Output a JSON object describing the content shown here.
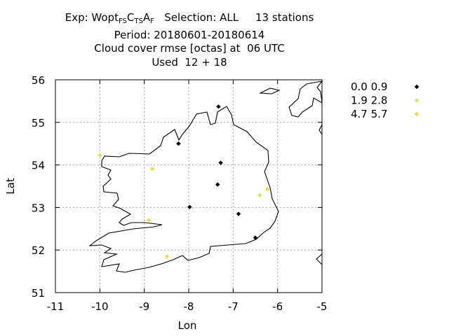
{
  "chart_data": {
    "type": "scatter",
    "title": {
      "exp_prefix": "Exp: Wopt",
      "exp_parts": [
        {
          "sub": "FS"
        },
        {
          "txt": "C"
        },
        {
          "sub": "TS"
        },
        {
          "txt": "A"
        },
        {
          "sub": "F"
        }
      ],
      "selection": "Selection: ALL",
      "stations": "13 stations",
      "period": "Period: 20180601-20180614",
      "variable": "Cloud cover rmse [octas] at  06 UTC",
      "used": "Used  12 + 18"
    },
    "xlabel": "Lon",
    "ylabel": "Lat",
    "xlim": [
      -11,
      -5
    ],
    "ylim": [
      51,
      56
    ],
    "xticks": [
      -11,
      -10,
      -9,
      -8,
      -7,
      -6,
      -5
    ],
    "yticks": [
      51,
      52,
      53,
      54,
      55,
      56
    ],
    "grid": true,
    "legend_position": "right",
    "series": [
      {
        "name": "0.0 0.9",
        "color": "#000000",
        "points": [
          [
            -7.33,
            55.37
          ],
          [
            -8.23,
            54.5
          ],
          [
            -7.28,
            54.05
          ],
          [
            -7.35,
            53.54
          ],
          [
            -7.98,
            53.01
          ],
          [
            -6.88,
            52.85
          ],
          [
            -6.5,
            52.29
          ]
        ]
      },
      {
        "name": "1.9 2.8",
        "color": "#f0d94a",
        "points": [
          [
            -10.0,
            54.23
          ],
          [
            -8.82,
            53.91
          ],
          [
            -6.4,
            53.29
          ],
          [
            -6.23,
            53.43
          ],
          [
            -8.9,
            52.7
          ],
          [
            -8.49,
            51.85
          ]
        ]
      },
      {
        "name": "4.7 5.7",
        "color": "#f0d94a",
        "points": []
      }
    ]
  }
}
